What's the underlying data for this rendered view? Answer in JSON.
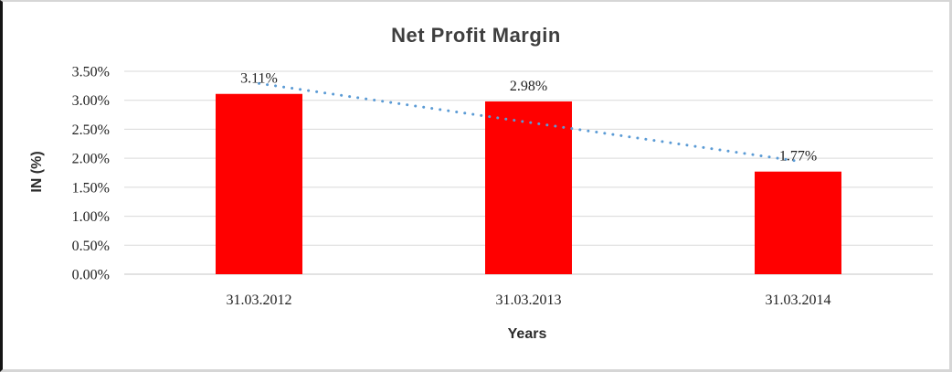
{
  "chart_data": {
    "type": "bar",
    "title": "Net Profit Margin",
    "xlabel": "Years",
    "ylabel": "IN (%)",
    "categories": [
      "31.03.2012",
      "31.03.2013",
      "31.03.2014"
    ],
    "values": [
      3.11,
      2.98,
      1.77
    ],
    "data_labels": [
      "3.11%",
      "2.98%",
      "1.77%"
    ],
    "ylim": [
      0,
      3.5
    ],
    "y_ticks": {
      "values": [
        0,
        0.5,
        1,
        1.5,
        2,
        2.5,
        3,
        3.5
      ],
      "labels": [
        "0.00%",
        "0.50%",
        "1.00%",
        "1.50%",
        "2.00%",
        "2.50%",
        "3.00%",
        "3.50%"
      ]
    },
    "grid": true,
    "legend": "none",
    "bar_color": "#FF0000",
    "trendline": {
      "type": "linear",
      "style": "dotted",
      "color": "#5B9BD5"
    },
    "colors": {
      "title_text": "#3F3F3F",
      "axis_text": "#1F1F1F",
      "gridline": "#D9D9D9",
      "zero_line": "#C6C6C6",
      "background": "#FFFFFF",
      "frame_border": "#D6D6D6",
      "left_border": "#141414"
    }
  }
}
